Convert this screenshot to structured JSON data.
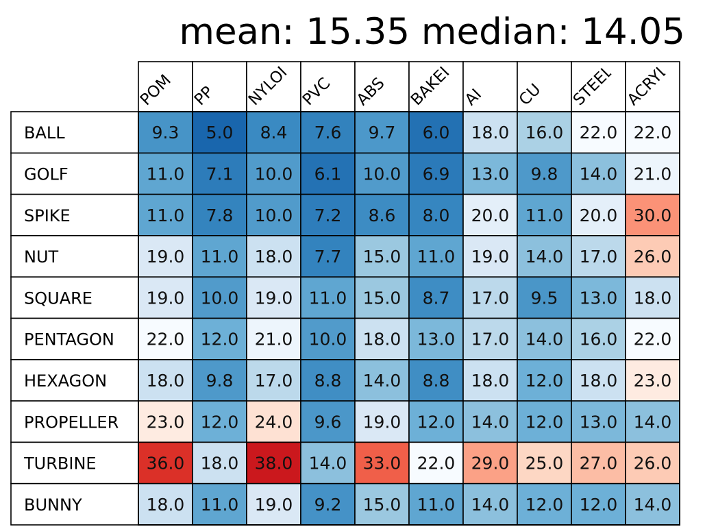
{
  "chart_data": {
    "type": "heatmap",
    "title": "mean: 15.35 median: 14.05",
    "columns": [
      "POM",
      "PP",
      "NYLON",
      "PVC",
      "ABS",
      "BAKELITE",
      "AI",
      "CU",
      "STEEL",
      "ACRYLIC"
    ],
    "rows": [
      "BALL",
      "GOLF",
      "SPIKE",
      "NUT",
      "SQUARE",
      "PENTAGON",
      "HEXAGON",
      "PROPELLER",
      "TURBINE",
      "BUNNY"
    ],
    "values": [
      [
        9.3,
        5.0,
        8.4,
        7.6,
        9.7,
        6.0,
        18.0,
        16.0,
        22.0,
        22.0
      ],
      [
        11.0,
        7.1,
        10.0,
        6.1,
        10.0,
        6.9,
        13.0,
        9.8,
        14.0,
        21.0
      ],
      [
        11.0,
        7.8,
        10.0,
        7.2,
        8.6,
        8.0,
        20.0,
        11.0,
        20.0,
        30.0
      ],
      [
        19.0,
        11.0,
        18.0,
        7.7,
        15.0,
        11.0,
        19.0,
        14.0,
        17.0,
        26.0
      ],
      [
        19.0,
        10.0,
        19.0,
        11.0,
        15.0,
        8.7,
        17.0,
        9.5,
        13.0,
        18.0
      ],
      [
        22.0,
        12.0,
        21.0,
        10.0,
        18.0,
        13.0,
        17.0,
        14.0,
        16.0,
        22.0
      ],
      [
        18.0,
        9.8,
        17.0,
        8.8,
        14.0,
        8.8,
        18.0,
        12.0,
        18.0,
        23.0
      ],
      [
        23.0,
        12.0,
        24.0,
        9.6,
        19.0,
        12.0,
        14.0,
        12.0,
        13.0,
        14.0
      ],
      [
        36.0,
        18.0,
        38.0,
        14.0,
        33.0,
        22.0,
        29.0,
        25.0,
        27.0,
        26.0
      ],
      [
        18.0,
        11.0,
        19.0,
        9.2,
        15.0,
        11.0,
        14.0,
        12.0,
        12.0,
        14.0
      ]
    ],
    "colormap": "blue-white-red (RdBu reversed)",
    "color_center": 22.0,
    "color_range": [
      5.0,
      38.0
    ],
    "legend": "none",
    "grid": true
  }
}
